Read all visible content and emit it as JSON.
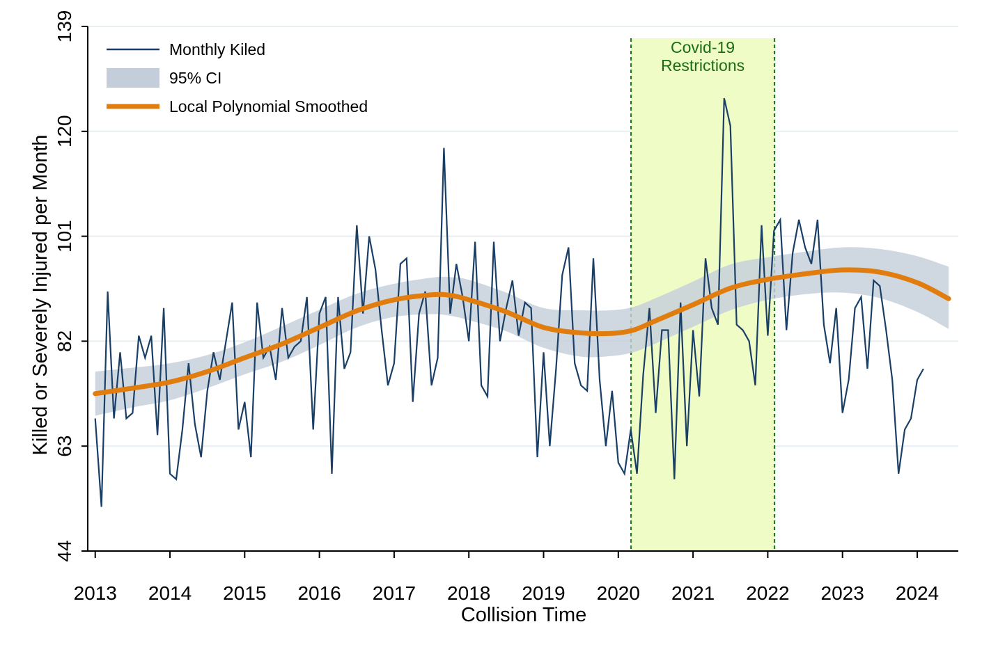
{
  "chart_data": {
    "type": "line",
    "xlabel": "Collision Time",
    "ylabel": "Killed or Severely Injured per Month",
    "xlim": [
      2012.9,
      2024.55
    ],
    "ylim": [
      44,
      139
    ],
    "x_ticks": [
      2013,
      2014,
      2015,
      2016,
      2017,
      2018,
      2019,
      2020,
      2021,
      2022,
      2023,
      2024
    ],
    "y_ticks": [
      44,
      63,
      82,
      101,
      120,
      139
    ],
    "grid": true,
    "legend_position": "top-left",
    "colors": {
      "monthly": "#1a3f66",
      "ci": "#c4ceda",
      "smooth": "#e07d0e",
      "covid_fill": "#f0fcc6",
      "covid_line": "#1f7a1f"
    },
    "legend": [
      {
        "key": "monthly",
        "label": "Monthly Kiled"
      },
      {
        "key": "ci",
        "label": "95% CI"
      },
      {
        "key": "smooth",
        "label": "Local Polynomial Smoothed"
      }
    ],
    "annotation": {
      "label_line1": "Covid-19",
      "label_line2": "Restrictions",
      "x_start": 2020.17,
      "x_end": 2022.09
    },
    "series": [
      {
        "name": "Monthly Kiled",
        "start_year": 2013,
        "step_months": 1,
        "values": [
          68,
          52,
          91,
          68,
          80,
          68,
          69,
          83,
          79,
          83,
          65,
          88,
          58,
          57,
          66,
          78,
          67,
          61,
          73,
          80,
          75,
          82,
          89,
          66,
          71,
          61,
          89,
          79,
          81,
          75,
          88,
          79,
          81,
          82,
          90,
          66,
          87,
          90,
          58,
          90,
          77,
          80,
          103,
          87,
          101,
          95,
          84,
          74,
          78,
          96,
          97,
          71,
          87,
          91,
          74,
          79,
          117,
          87,
          96,
          90,
          82,
          100,
          74,
          72,
          100,
          82,
          88,
          93,
          83,
          89,
          88,
          61,
          80,
          63,
          77,
          94,
          99,
          78,
          74,
          73,
          97,
          75,
          63,
          73,
          60,
          58,
          66,
          58,
          76,
          88,
          69,
          84,
          84,
          57,
          89,
          63,
          84,
          72,
          97,
          88,
          85,
          126,
          121,
          85,
          84,
          82,
          74,
          103,
          83,
          102,
          104,
          84,
          98,
          104,
          99,
          96,
          104,
          85,
          78,
          88,
          69,
          75,
          88,
          90,
          77,
          93,
          92,
          84,
          75,
          58,
          66,
          68,
          75,
          77
        ]
      },
      {
        "name": "Local Polynomial Smoothed",
        "x": [
          2013.0,
          2013.5,
          2014.0,
          2014.5,
          2015.0,
          2015.5,
          2016.0,
          2016.5,
          2017.0,
          2017.5,
          2017.75,
          2018.0,
          2018.5,
          2019.0,
          2019.5,
          2019.9,
          2020.2,
          2020.5,
          2021.0,
          2021.5,
          2022.0,
          2022.5,
          2023.0,
          2023.5,
          2024.0,
          2024.42
        ],
        "y": [
          72.5,
          73.5,
          74.6,
          76.5,
          79,
          81.5,
          84.5,
          87.5,
          89.5,
          90.4,
          90.3,
          89.5,
          87.3,
          84.5,
          83.5,
          83.4,
          84,
          85.7,
          88.6,
          91.6,
          93.2,
          94.2,
          94.9,
          94.5,
          92.6,
          89.7
        ],
        "ci_lower": [
          68.5,
          70.0,
          71.3,
          73.5,
          76.0,
          78.3,
          81.3,
          84.5,
          86.4,
          86.9,
          86.6,
          85.8,
          83.8,
          80.8,
          79.2,
          79.3,
          80.0,
          81.6,
          84.6,
          87.6,
          89.5,
          90.5,
          90.8,
          89.8,
          87.3,
          84.2
        ],
        "ci_upper": [
          76.5,
          77.2,
          78.0,
          79.5,
          81.8,
          84.7,
          87.7,
          90.6,
          92.4,
          93.5,
          93.6,
          93.1,
          90.8,
          88.0,
          87.6,
          87.6,
          88.2,
          89.8,
          92.8,
          95.9,
          97.2,
          98.2,
          99.0,
          98.7,
          97.4,
          95.5
        ]
      }
    ]
  }
}
